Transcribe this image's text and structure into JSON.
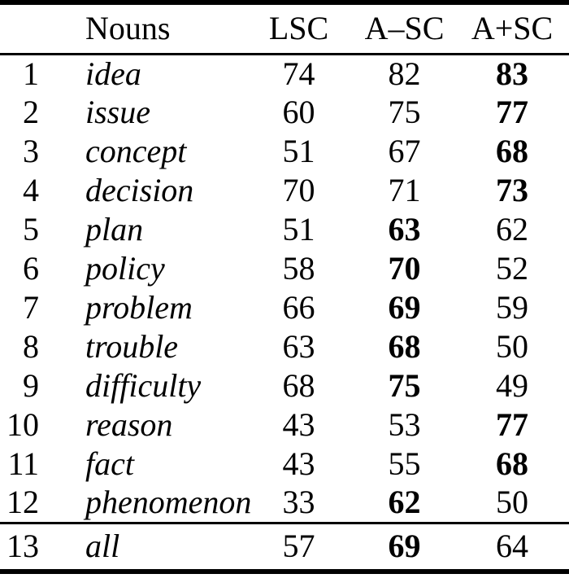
{
  "colors": {
    "background": "#ffffff",
    "text": "#000000",
    "rule": "#000000"
  },
  "table": {
    "header": {
      "rank": "",
      "noun": "Nouns",
      "cols": [
        "LSC",
        "A–SC",
        "A+SC"
      ]
    },
    "rows": [
      {
        "rank": "1",
        "noun": "idea",
        "values": [
          "74",
          "82",
          "83"
        ],
        "bold_index": 2
      },
      {
        "rank": "2",
        "noun": "issue",
        "values": [
          "60",
          "75",
          "77"
        ],
        "bold_index": 2
      },
      {
        "rank": "3",
        "noun": "concept",
        "values": [
          "51",
          "67",
          "68"
        ],
        "bold_index": 2
      },
      {
        "rank": "4",
        "noun": "decision",
        "values": [
          "70",
          "71",
          "73"
        ],
        "bold_index": 2
      },
      {
        "rank": "5",
        "noun": "plan",
        "values": [
          "51",
          "63",
          "62"
        ],
        "bold_index": 1
      },
      {
        "rank": "6",
        "noun": "policy",
        "values": [
          "58",
          "70",
          "52"
        ],
        "bold_index": 1
      },
      {
        "rank": "7",
        "noun": "problem",
        "values": [
          "66",
          "69",
          "59"
        ],
        "bold_index": 1
      },
      {
        "rank": "8",
        "noun": "trouble",
        "values": [
          "63",
          "68",
          "50"
        ],
        "bold_index": 1
      },
      {
        "rank": "9",
        "noun": "difficulty",
        "values": [
          "68",
          "75",
          "49"
        ],
        "bold_index": 1
      },
      {
        "rank": "10",
        "noun": "reason",
        "values": [
          "43",
          "53",
          "77"
        ],
        "bold_index": 2
      },
      {
        "rank": "11",
        "noun": "fact",
        "values": [
          "43",
          "55",
          "68"
        ],
        "bold_index": 2
      },
      {
        "rank": "12",
        "noun": "phenomenon",
        "values": [
          "33",
          "62",
          "50"
        ],
        "bold_index": 1
      }
    ],
    "total_row": {
      "rank": "13",
      "noun": "all",
      "values": [
        "57",
        "69",
        "64"
      ],
      "bold_index": 1
    }
  }
}
